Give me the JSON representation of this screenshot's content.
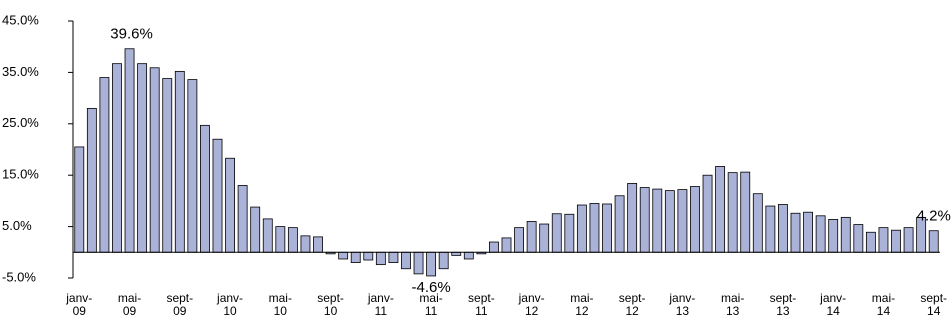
{
  "chart_data": {
    "type": "bar",
    "categories": [
      "janv-09",
      null,
      null,
      null,
      "mai-09",
      null,
      null,
      null,
      "sept-09",
      null,
      null,
      null,
      "janv-10",
      null,
      null,
      null,
      "mai-10",
      null,
      null,
      null,
      "sept-10",
      null,
      null,
      null,
      "janv-11",
      null,
      null,
      null,
      "mai-11",
      null,
      null,
      null,
      "sept-11",
      null,
      null,
      null,
      "janv-12",
      null,
      null,
      null,
      "mai-12",
      null,
      null,
      null,
      "sept-12",
      null,
      null,
      null,
      "janv-13",
      null,
      null,
      null,
      "mai-13",
      null,
      null,
      null,
      "sept-13",
      null,
      null,
      null,
      "janv-14",
      null,
      null,
      null,
      "mai-14",
      null,
      null,
      null,
      "sept-14"
    ],
    "values": [
      20.5,
      28,
      34,
      36.7,
      39.6,
      36.7,
      35.9,
      33.8,
      35.2,
      33.6,
      24.7,
      22,
      18.3,
      13,
      8.8,
      6.5,
      5,
      4.8,
      3.2,
      3,
      -0.3,
      -1.3,
      -2,
      -1.5,
      -2.4,
      -2,
      -3.2,
      -4.2,
      -4.6,
      -3.2,
      -0.6,
      -1.3,
      -0.3,
      2,
      2.8,
      4.8,
      6,
      5.5,
      7.5,
      7.4,
      9.2,
      9.5,
      9.4,
      11,
      13.4,
      12.6,
      12.3,
      12,
      12.2,
      12.8,
      15,
      16.7,
      15.5,
      15.6,
      11.4,
      9,
      9.3,
      7.6,
      7.8,
      7.1,
      6.4,
      6.8,
      5.4,
      3.9,
      4.8,
      4.3,
      4.8,
      6.8,
      4.2
    ],
    "value_labels": [
      null,
      null,
      null,
      null,
      "39.6%",
      null,
      null,
      null,
      null,
      null,
      null,
      null,
      null,
      null,
      null,
      null,
      null,
      null,
      null,
      null,
      null,
      null,
      null,
      null,
      null,
      null,
      null,
      null,
      "-4.6%",
      null,
      null,
      null,
      null,
      null,
      null,
      null,
      null,
      null,
      null,
      null,
      null,
      null,
      null,
      null,
      null,
      null,
      null,
      null,
      null,
      null,
      null,
      null,
      null,
      null,
      null,
      null,
      null,
      null,
      null,
      null,
      null,
      null,
      null,
      null,
      null,
      null,
      null,
      null,
      "4.2%"
    ],
    "color": "#aab2d8",
    "ylim": [
      -5,
      45
    ],
    "yticks": [
      {
        "value": -5,
        "label": "-5.0%"
      },
      {
        "value": 5,
        "label": "5.0%"
      },
      {
        "value": 15,
        "label": "15.0%"
      },
      {
        "value": 25,
        "label": "25.0%"
      },
      {
        "value": 35,
        "label": "35.0%"
      },
      {
        "value": 45,
        "label": "45.0%"
      }
    ]
  }
}
